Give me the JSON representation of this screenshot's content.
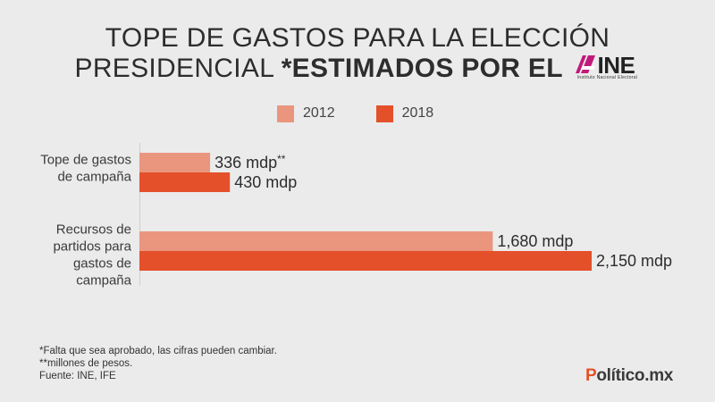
{
  "header": {
    "title_line1": "TOPE DE GASTOS PARA LA ELECCIÓN",
    "title_line2": "PRESIDENCIAL ",
    "title_line2_bold": "*ESTIMADOS POR EL",
    "logo_text": "INE",
    "logo_subtext": "Instituto Nacional Electoral"
  },
  "colors": {
    "background": "#ebebeb",
    "series_2012": "#ea967f",
    "series_2018": "#e4502a",
    "brand_accent": "#e4502a"
  },
  "chart_data": {
    "type": "bar",
    "orientation": "horizontal",
    "categories": [
      "Tope de gastos de campaña",
      "Recursos de partidos para gastos de campaña"
    ],
    "category_lines": [
      [
        "Tope de gastos",
        "de campaña"
      ],
      [
        "Recursos de",
        "partidos para",
        "gastos de",
        "campaña"
      ]
    ],
    "series": [
      {
        "name": "2012",
        "values": [
          336,
          1680
        ],
        "labels": [
          "336 mdp",
          "1,680 mdp"
        ],
        "label_suffix": [
          "**",
          ""
        ]
      },
      {
        "name": "2018",
        "values": [
          430,
          2150
        ],
        "labels": [
          "430 mdp",
          "2,150 mdp"
        ],
        "label_suffix": [
          "",
          ""
        ]
      }
    ],
    "xlim": [
      0,
      2150
    ],
    "legend_position": "top",
    "grid": false
  },
  "footer": {
    "notes": [
      "*Falta que sea aprobado, las cifras pueden cambiar.",
      "**millones de pesos.",
      "Fuente: INE, IFE"
    ],
    "brand_first": "P",
    "brand_rest": "olítico.mx"
  }
}
